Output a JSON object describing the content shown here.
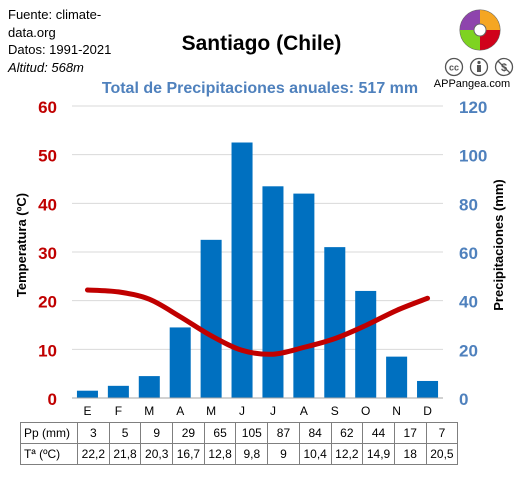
{
  "source": {
    "line1": "Fuente: climate-data.org",
    "line2": "Datos: 1991-2021",
    "line3": "Altitud: 568m"
  },
  "brand": {
    "site": "APPangea.com",
    "logo_icon": "puzzle-globe-icon",
    "license_icons": [
      "cc-icon",
      "attribution-icon",
      "noncommercial-icon"
    ]
  },
  "table": {
    "pp_label": "Pp (mm)",
    "t_label": "Tª (ºC)",
    "pp": [
      "3",
      "5",
      "9",
      "29",
      "65",
      "105",
      "87",
      "84",
      "62",
      "44",
      "17",
      "7"
    ],
    "t": [
      "22,2",
      "21,8",
      "20,3",
      "16,7",
      "12,8",
      "9,8",
      "9",
      "10,4",
      "12,2",
      "14,9",
      "18",
      "20,5"
    ]
  },
  "chart_data": {
    "type": "bar",
    "title": "Santiago (Chile)",
    "subtitle": "Total de Precipitaciones anuales: 517 mm",
    "categories": [
      "E",
      "F",
      "M",
      "A",
      "M",
      "J",
      "J",
      "A",
      "S",
      "O",
      "N",
      "D"
    ],
    "series": [
      {
        "name": "Precipitaciones (mm)",
        "type": "bar",
        "axis": "right",
        "values": [
          3,
          5,
          9,
          29,
          65,
          105,
          87,
          84,
          62,
          44,
          17,
          7
        ],
        "color": "#0070c0"
      },
      {
        "name": "Temperatura (ºC)",
        "type": "line",
        "axis": "left",
        "values": [
          22.2,
          21.8,
          20.3,
          16.7,
          12.8,
          9.8,
          9,
          10.4,
          12.2,
          14.9,
          18,
          20.5
        ],
        "color": "#c00000"
      }
    ],
    "ylabel": "Temperatura (ºC)",
    "ylabel_right": "Precipitaciones (mm)",
    "ylim": [
      0,
      60
    ],
    "ylim_right": [
      0,
      120
    ],
    "yticks": [
      "0",
      "10",
      "20",
      "30",
      "40",
      "50",
      "60"
    ],
    "yticks_right": [
      "0",
      "20",
      "40",
      "60",
      "80",
      "100",
      "120"
    ],
    "grid": true,
    "left_axis_color": "#c00000",
    "right_axis_color": "#4f81bd"
  }
}
